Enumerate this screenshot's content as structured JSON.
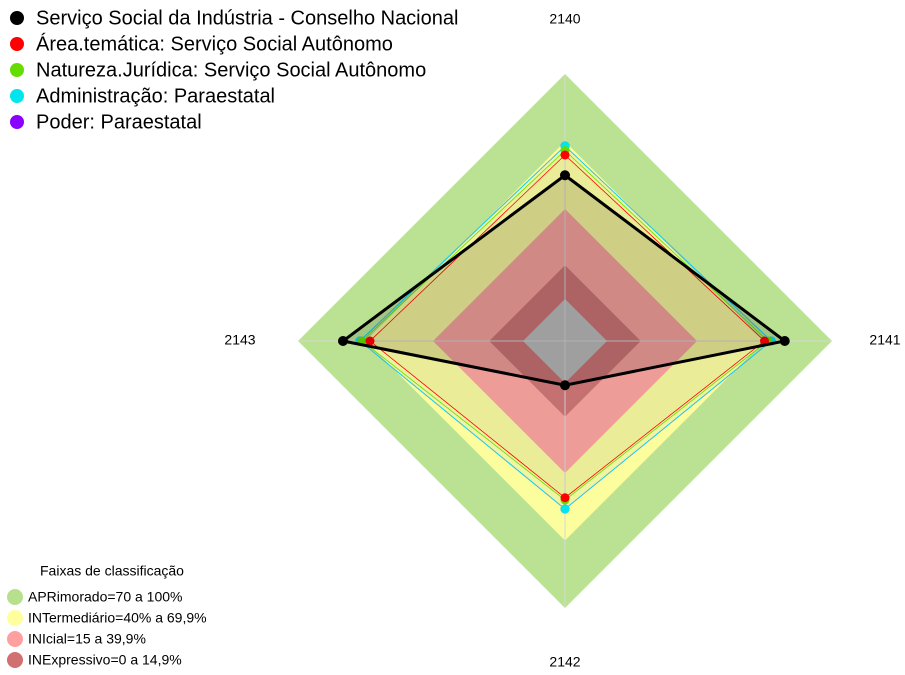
{
  "chart_data": {
    "type": "radar",
    "categories": [
      "2140",
      "2141",
      "2142",
      "2143"
    ],
    "rlim": [
      0,
      100
    ],
    "series": [
      {
        "name": "Serviço Social da Indústria - Conselho Nacional",
        "color": "#000000",
        "values": [
          55,
          79,
          1,
          80
        ]
      },
      {
        "name": "Área.temática: Serviço Social Autônomo",
        "color": "#ff0000",
        "values": [
          64,
          70,
          51,
          68
        ]
      },
      {
        "name": "Natureza.Jurídica: Serviço Social Autônomo",
        "color": "#66dd00",
        "values": [
          66,
          71.5,
          52,
          71.5
        ]
      },
      {
        "name": "Administração: Paraestatal",
        "color": "#00e5ee",
        "values": [
          68,
          73,
          56,
          72.5
        ]
      },
      {
        "name": "Poder: Paraestatal",
        "color": "#8a00ff",
        "values": [
          68,
          73,
          56,
          72.5
        ]
      }
    ],
    "bands_title": "Faixas de classificação",
    "bands": [
      {
        "label": "APRimorado=70 a 100%",
        "color": "#b6e08c",
        "min": 70,
        "max": 100
      },
      {
        "label": "INTermediário=40% a 69,9%",
        "color": "#ffff9e",
        "min": 40,
        "max": 70
      },
      {
        "label": "INIcial=15 a 39,9%",
        "color": "#ff9f9f",
        "min": 15,
        "max": 40
      },
      {
        "label": "INExpressivo=0 a 14,9%",
        "color": "#d07070",
        "min": 0,
        "max": 15
      }
    ]
  }
}
